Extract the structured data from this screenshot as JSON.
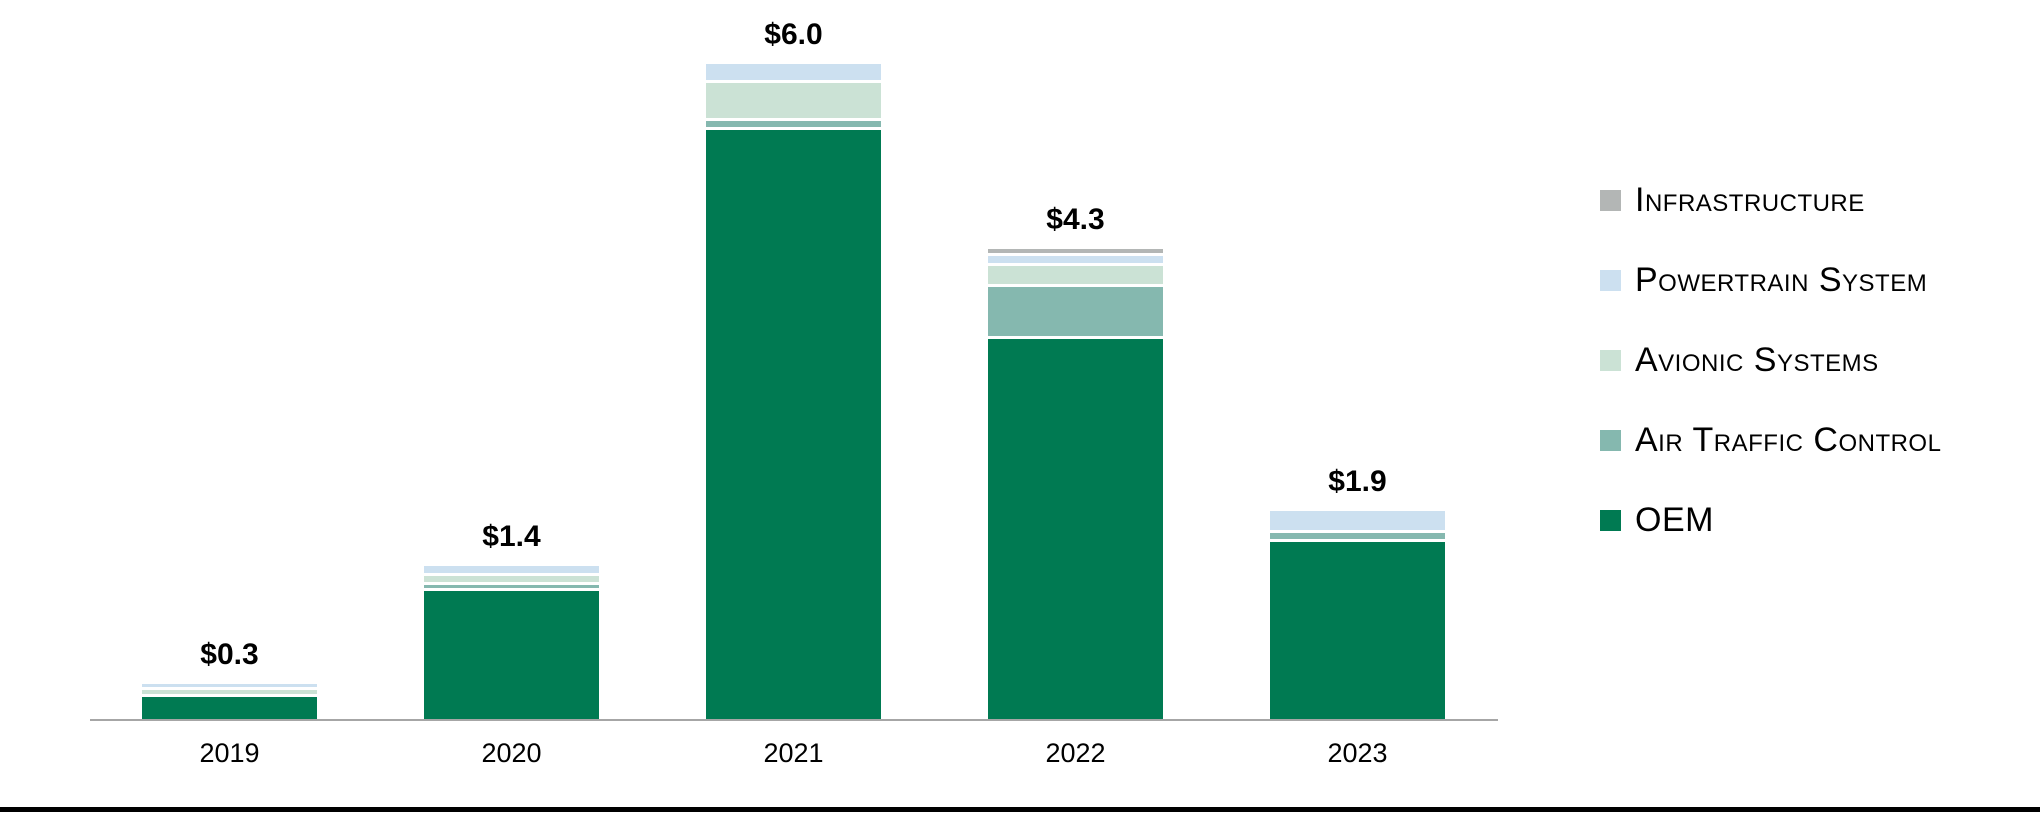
{
  "chart_data": {
    "type": "bar",
    "stacked": true,
    "title": "",
    "xlabel": "",
    "ylabel": "",
    "grid": false,
    "legend_position": "right",
    "categories": [
      "2019",
      "2020",
      "2021",
      "2022",
      "2023"
    ],
    "series": [
      {
        "name": "OEM",
        "color": "#007A52",
        "values": [
          0.2,
          1.17,
          5.4,
          3.49,
          1.62
        ]
      },
      {
        "name": "Air Traffic Control",
        "color": "#85B8AF",
        "values": [
          0,
          0.04,
          0.08,
          0.48,
          0.08
        ]
      },
      {
        "name": "Avionic Systems",
        "color": "#CBE2D5",
        "values": [
          0.06,
          0.08,
          0.35,
          0.19,
          0
        ]
      },
      {
        "name": "Powertrain System",
        "color": "#CCE0F0",
        "values": [
          0.03,
          0.09,
          0.17,
          0.09,
          0.2
        ]
      },
      {
        "name": "Infrastructure",
        "color": "#B3B6B5",
        "values": [
          0,
          0,
          0,
          0.06,
          0
        ]
      }
    ],
    "totals_labels": [
      "$0.3",
      "$1.4",
      "$6.0",
      "$4.3",
      "$1.9"
    ],
    "totals_values": [
      0.3,
      1.4,
      6.0,
      4.3,
      1.9
    ],
    "value_axis_visible": false,
    "baseline_color": "#A6A6A6",
    "bottom_rule_color": "#000000",
    "label_color": "#000000"
  },
  "legend": {
    "items": [
      {
        "label": "Infrastructure",
        "color": "#B3B6B5"
      },
      {
        "label": "Powertrain System",
        "color": "#CCE0F0"
      },
      {
        "label": "Avionic Systems",
        "color": "#CBE2D5"
      },
      {
        "label": "Air Traffic Control",
        "color": "#85B8AF"
      },
      {
        "label": "OEM",
        "color": "#007A52"
      }
    ]
  }
}
